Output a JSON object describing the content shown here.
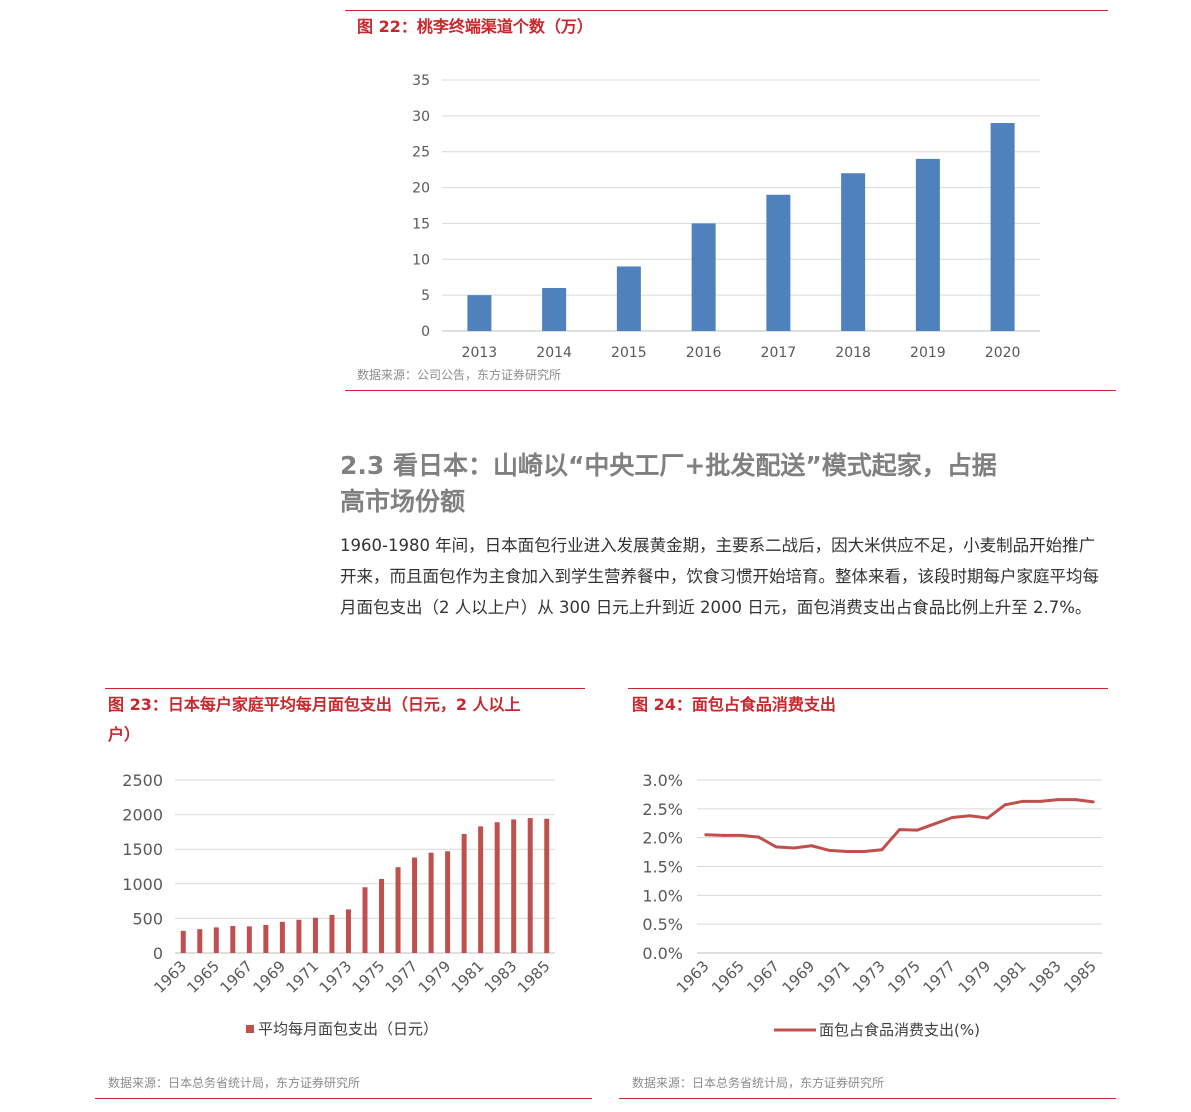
{
  "top_cut_text": "",
  "fig22": {
    "title": "图 22：桃李终端渠道个数（万）",
    "source": "数据来源：公司公告，东方证券研究所"
  },
  "section": {
    "heading_line1": "2.3  看日本：山崎以“中央工厂+批发配送”模式起家，占据",
    "heading_line2": "高市场份额",
    "paragraph": "1960-1980 年间，日本面包行业进入发展黄金期，主要系二战后，因大米供应不足，小麦制品开始推广开来，而且面包作为主食加入到学生营养餐中，饮食习惯开始培育。整体来看，该段时期每户家庭平均每月面包支出（2 人以上户）从 300 日元上升到近 2000 日元，面包消费支出占食品比例上升至 2.7%。"
  },
  "fig23": {
    "title_line1": "图 23：日本每户家庭平均每月面包支出（日元，2 人以上",
    "title_line2": "户）",
    "legend": "平均每月面包支出（日元）",
    "source": "数据来源：日本总务省统计局，东方证券研究所"
  },
  "fig24": {
    "title": "图 24：面包占食品消费支出",
    "legend": "面包占食品消费支出(%)",
    "source": "数据来源：日本总务省统计局，东方证券研究所"
  },
  "colors": {
    "accent_red": "#c8282d",
    "bar_blue": "#4f81bd",
    "bar_red": "#c0504d"
  },
  "chart_data": [
    {
      "id": "fig22",
      "type": "bar",
      "categories": [
        "2013",
        "2014",
        "2015",
        "2016",
        "2017",
        "2018",
        "2019",
        "2020"
      ],
      "values": [
        5,
        6,
        9,
        15,
        19,
        22,
        24,
        29
      ],
      "ylim": [
        0,
        35
      ],
      "yticks": [
        0,
        5,
        10,
        15,
        20,
        25,
        30,
        35
      ],
      "grid": true,
      "color": "#4f81bd"
    },
    {
      "id": "fig23",
      "type": "bar",
      "categories": [
        "1963",
        "1964",
        "1965",
        "1966",
        "1967",
        "1968",
        "1969",
        "1970",
        "1971",
        "1972",
        "1973",
        "1974",
        "1975",
        "1976",
        "1977",
        "1978",
        "1979",
        "1980",
        "1981",
        "1982",
        "1983",
        "1984",
        "1985"
      ],
      "x_tick_labels": [
        "1963",
        "1965",
        "1967",
        "1969",
        "1971",
        "1973",
        "1975",
        "1977",
        "1979",
        "1981",
        "1983",
        "1985"
      ],
      "series": [
        {
          "name": "平均每月面包支出（日元）",
          "values": [
            320,
            345,
            370,
            390,
            385,
            405,
            450,
            480,
            510,
            550,
            630,
            950,
            1070,
            1240,
            1380,
            1450,
            1470,
            1720,
            1830,
            1890,
            1930,
            1950,
            1940
          ]
        }
      ],
      "ylim": [
        0,
        2500
      ],
      "yticks": [
        0,
        500,
        1000,
        1500,
        2000,
        2500
      ],
      "grid": true,
      "legend_position": "bottom",
      "color": "#c0504d"
    },
    {
      "id": "fig24",
      "type": "line",
      "x": [
        "1963",
        "1964",
        "1965",
        "1966",
        "1967",
        "1968",
        "1969",
        "1970",
        "1971",
        "1972",
        "1973",
        "1974",
        "1975",
        "1976",
        "1977",
        "1978",
        "1979",
        "1980",
        "1981",
        "1982",
        "1983",
        "1984",
        "1985"
      ],
      "x_tick_labels": [
        "1963",
        "1965",
        "1967",
        "1969",
        "1971",
        "1973",
        "1975",
        "1977",
        "1979",
        "1981",
        "1983",
        "1985"
      ],
      "series": [
        {
          "name": "面包占食品消费支出(%)",
          "values": [
            2.05,
            2.04,
            2.04,
            2.01,
            1.84,
            1.82,
            1.86,
            1.78,
            1.76,
            1.76,
            1.79,
            2.14,
            2.13,
            2.24,
            2.35,
            2.38,
            2.34,
            2.57,
            2.63,
            2.63,
            2.66,
            2.66,
            2.62
          ]
        }
      ],
      "ylim": [
        0,
        3.0
      ],
      "yticks": [
        0.0,
        0.5,
        1.0,
        1.5,
        2.0,
        2.5,
        3.0
      ],
      "ytick_labels": [
        "0.0%",
        "0.5%",
        "1.0%",
        "1.5%",
        "2.0%",
        "2.5%",
        "3.0%"
      ],
      "grid": true,
      "legend_position": "bottom",
      "color": "#c0504d"
    }
  ]
}
